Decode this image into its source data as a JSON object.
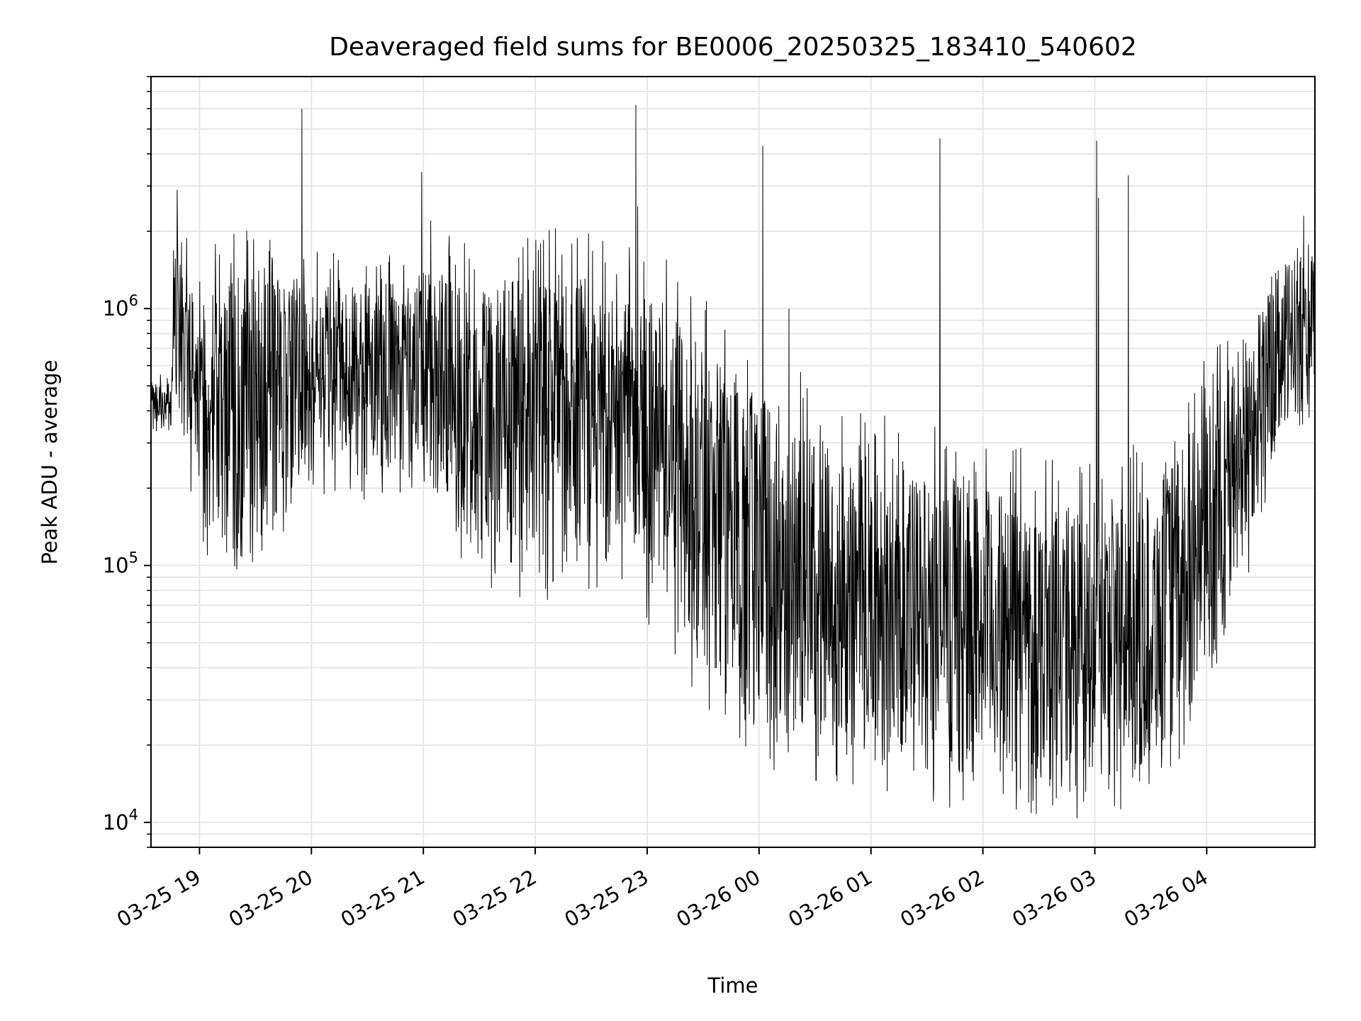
{
  "chart_data": {
    "type": "line",
    "title": "Deaveraged field sums for BE0006_20250325_183410_540602",
    "xlabel": "Time",
    "ylabel": "Peak ADU - average",
    "y_scale": "log",
    "ylim": [
      8000,
      8000000
    ],
    "xlim": [
      "2025-03-25 18:34",
      "2025-03-26 04:58"
    ],
    "grid": true,
    "line_color": "#000000",
    "grid_color": "#e6e6e6",
    "x_ticks": [
      {
        "value": "2025-03-25 19:00",
        "label": "03-25 19"
      },
      {
        "value": "2025-03-25 20:00",
        "label": "03-25 20"
      },
      {
        "value": "2025-03-25 21:00",
        "label": "03-25 21"
      },
      {
        "value": "2025-03-25 22:00",
        "label": "03-25 22"
      },
      {
        "value": "2025-03-25 23:00",
        "label": "03-25 23"
      },
      {
        "value": "2025-03-26 00:00",
        "label": "03-26 00"
      },
      {
        "value": "2025-03-26 01:00",
        "label": "03-26 01"
      },
      {
        "value": "2025-03-26 02:00",
        "label": "03-26 02"
      },
      {
        "value": "2025-03-26 03:00",
        "label": "03-26 03"
      },
      {
        "value": "2025-03-26 04:00",
        "label": "03-26 04"
      }
    ],
    "y_ticks": [
      {
        "value": 10000,
        "base": "10",
        "exp": "4"
      },
      {
        "value": 100000,
        "base": "10",
        "exp": "5"
      },
      {
        "value": 1000000,
        "base": "10",
        "exp": "6"
      }
    ],
    "envelope": [
      {
        "t": "2025-03-25 18:34",
        "low": 320000,
        "high": 530000
      },
      {
        "t": "2025-03-25 18:45",
        "low": 350000,
        "high": 500000
      },
      {
        "t": "2025-03-25 18:46",
        "low": 600000,
        "high": 1700000
      },
      {
        "t": "2025-03-25 19:00",
        "low": 150000,
        "high": 1200000
      },
      {
        "t": "2025-03-25 19:20",
        "low": 90000,
        "high": 1300000
      },
      {
        "t": "2025-03-25 19:40",
        "low": 150000,
        "high": 1350000
      },
      {
        "t": "2025-03-25 20:00",
        "low": 230000,
        "high": 1250000
      },
      {
        "t": "2025-03-25 20:30",
        "low": 220000,
        "high": 1200000
      },
      {
        "t": "2025-03-25 21:00",
        "low": 220000,
        "high": 1400000
      },
      {
        "t": "2025-03-25 21:30",
        "low": 110000,
        "high": 1300000
      },
      {
        "t": "2025-03-25 22:00",
        "low": 90000,
        "high": 1300000
      },
      {
        "t": "2025-03-25 22:30",
        "low": 110000,
        "high": 1300000
      },
      {
        "t": "2025-03-25 22:50",
        "low": 110000,
        "high": 1200000
      },
      {
        "t": "2025-03-25 23:10",
        "low": 60000,
        "high": 1000000
      },
      {
        "t": "2025-03-25 23:30",
        "low": 40000,
        "high": 700000
      },
      {
        "t": "2025-03-25 23:50",
        "low": 25000,
        "high": 500000
      },
      {
        "t": "2025-03-26 00:10",
        "low": 22000,
        "high": 450000
      },
      {
        "t": "2025-03-26 00:30",
        "low": 20000,
        "high": 300000
      },
      {
        "t": "2025-03-26 01:00",
        "low": 18000,
        "high": 250000
      },
      {
        "t": "2025-03-26 01:30",
        "low": 16000,
        "high": 220000
      },
      {
        "t": "2025-03-26 02:00",
        "low": 15000,
        "high": 200000
      },
      {
        "t": "2025-03-26 02:30",
        "low": 14000,
        "high": 180000
      },
      {
        "t": "2025-03-26 03:00",
        "low": 14000,
        "high": 170000
      },
      {
        "t": "2025-03-26 03:30",
        "low": 16000,
        "high": 200000
      },
      {
        "t": "2025-03-26 03:50",
        "low": 25000,
        "high": 300000
      },
      {
        "t": "2025-03-26 04:10",
        "low": 50000,
        "high": 600000
      },
      {
        "t": "2025-03-26 04:30",
        "low": 200000,
        "high": 1100000
      },
      {
        "t": "2025-03-26 04:50",
        "low": 400000,
        "high": 1800000
      },
      {
        "t": "2025-03-26 04:58",
        "low": 450000,
        "high": 1500000
      }
    ],
    "spikes": [
      {
        "t": "2025-03-25 18:48",
        "value": 2900000
      },
      {
        "t": "2025-03-25 19:55",
        "value": 6000000
      },
      {
        "t": "2025-03-25 20:59",
        "value": 3400000
      },
      {
        "t": "2025-03-25 21:04",
        "value": 2200000
      },
      {
        "t": "2025-03-25 22:54",
        "value": 6200000
      },
      {
        "t": "2025-03-25 22:55",
        "value": 2500000
      },
      {
        "t": "2025-03-26 00:02",
        "value": 4300000
      },
      {
        "t": "2025-03-26 00:16",
        "value": 1000000
      },
      {
        "t": "2025-03-26 01:37",
        "value": 4600000
      },
      {
        "t": "2025-03-26 03:01",
        "value": 4500000
      },
      {
        "t": "2025-03-26 03:02",
        "value": 2700000
      },
      {
        "t": "2025-03-26 03:18",
        "value": 3300000
      },
      {
        "t": "2025-03-26 04:52",
        "value": 2300000
      }
    ]
  }
}
